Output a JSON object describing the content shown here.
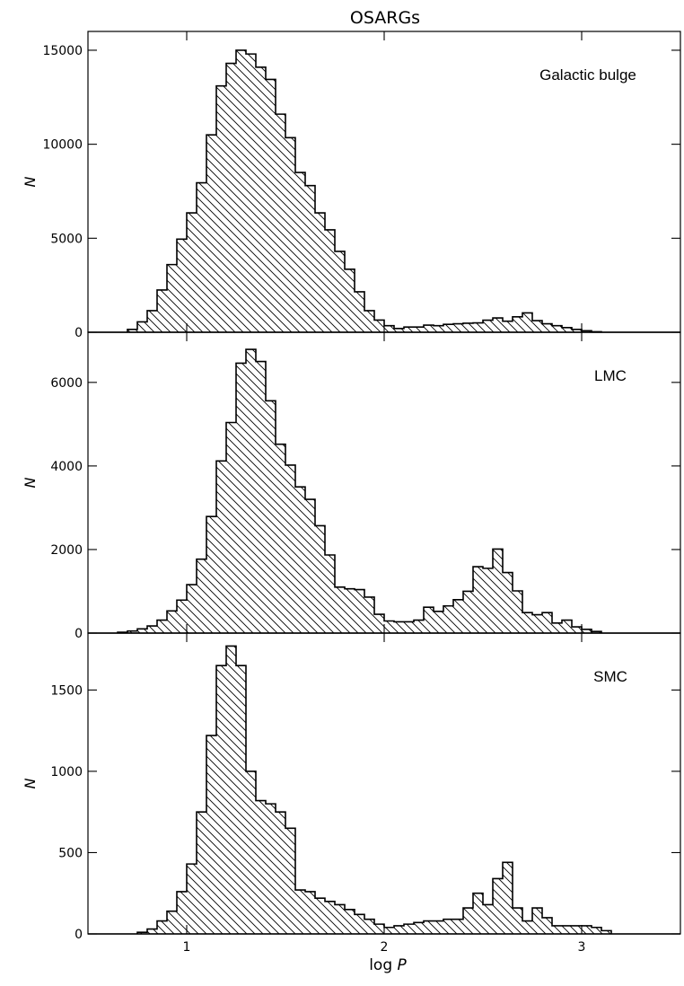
{
  "title": "OSARGs",
  "xlabel": {
    "prefix": "log",
    "var": "P"
  },
  "ylabel": "N",
  "colors": {
    "stroke": "#000000",
    "hatch": "#000000",
    "background": "#ffffff"
  },
  "chart_data": [
    {
      "type": "bar",
      "style": "step histogram with diagonal hatching",
      "panel_label": "Galactic bulge",
      "xlabel": "",
      "ylabel": "N",
      "xlim": [
        0.5,
        3.5
      ],
      "ylim": [
        0,
        16000
      ],
      "bin_width": 0.05,
      "x_ticks": [
        1,
        2,
        3
      ],
      "y_ticks": [
        0,
        5000,
        10000,
        15000
      ],
      "bin_start": [
        0.7,
        0.75,
        0.8,
        0.85,
        0.9,
        0.95,
        1.0,
        1.05,
        1.1,
        1.15,
        1.2,
        1.25,
        1.3,
        1.35,
        1.4,
        1.45,
        1.5,
        1.55,
        1.6,
        1.65,
        1.7,
        1.75,
        1.8,
        1.85,
        1.9,
        1.95,
        2.0,
        2.05,
        2.1,
        2.15,
        2.2,
        2.25,
        2.3,
        2.35,
        2.4,
        2.45,
        2.5,
        2.55,
        2.6,
        2.65,
        2.7,
        2.75,
        2.8,
        2.85,
        2.9,
        2.95,
        3.0,
        3.05
      ],
      "values": [
        150,
        550,
        1150,
        2250,
        3600,
        4950,
        6350,
        7950,
        10500,
        13100,
        14300,
        15000,
        14800,
        14100,
        13450,
        11600,
        10350,
        8500,
        7800,
        6350,
        5450,
        4300,
        3350,
        2150,
        1150,
        650,
        350,
        200,
        280,
        280,
        380,
        350,
        420,
        450,
        480,
        500,
        640,
        760,
        590,
        820,
        1030,
        620,
        450,
        350,
        250,
        150,
        80,
        30
      ]
    },
    {
      "type": "bar",
      "style": "step histogram with diagonal hatching",
      "panel_label": "LMC",
      "xlabel": "",
      "ylabel": "N",
      "xlim": [
        0.5,
        3.5
      ],
      "ylim": [
        0,
        7200
      ],
      "bin_width": 0.05,
      "x_ticks": [
        1,
        2,
        3
      ],
      "y_ticks": [
        0,
        2000,
        4000,
        6000
      ],
      "bin_start": [
        0.65,
        0.7,
        0.75,
        0.8,
        0.85,
        0.9,
        0.95,
        1.0,
        1.05,
        1.1,
        1.15,
        1.2,
        1.25,
        1.3,
        1.35,
        1.4,
        1.45,
        1.5,
        1.55,
        1.6,
        1.65,
        1.7,
        1.75,
        1.8,
        1.85,
        1.9,
        1.95,
        2.0,
        2.05,
        2.1,
        2.15,
        2.2,
        2.25,
        2.3,
        2.35,
        2.4,
        2.45,
        2.5,
        2.55,
        2.6,
        2.65,
        2.7,
        2.75,
        2.8,
        2.85,
        2.9,
        2.95,
        3.0,
        3.05
      ],
      "values": [
        20,
        50,
        100,
        170,
        310,
        530,
        790,
        1160,
        1770,
        2790,
        4120,
        5040,
        6460,
        6790,
        6500,
        5560,
        4520,
        4020,
        3500,
        3200,
        2570,
        1870,
        1100,
        1060,
        1040,
        860,
        450,
        290,
        270,
        270,
        310,
        620,
        520,
        650,
        800,
        1000,
        1590,
        1550,
        2010,
        1450,
        1010,
        490,
        440,
        490,
        240,
        310,
        150,
        90,
        40
      ]
    },
    {
      "type": "bar",
      "style": "step histogram with diagonal hatching",
      "panel_label": "SMC",
      "xlabel": "log P",
      "ylabel": "N",
      "xlim": [
        0.5,
        3.5
      ],
      "ylim": [
        0,
        1850
      ],
      "bin_width": 0.05,
      "x_ticks": [
        1,
        2,
        3
      ],
      "y_ticks": [
        0,
        500,
        1000,
        1500
      ],
      "bin_start": [
        0.75,
        0.8,
        0.85,
        0.9,
        0.95,
        1.0,
        1.05,
        1.1,
        1.15,
        1.2,
        1.25,
        1.3,
        1.35,
        1.4,
        1.45,
        1.5,
        1.55,
        1.6,
        1.65,
        1.7,
        1.75,
        1.8,
        1.85,
        1.9,
        1.95,
        2.0,
        2.05,
        2.1,
        2.15,
        2.2,
        2.25,
        2.3,
        2.35,
        2.4,
        2.45,
        2.5,
        2.55,
        2.6,
        2.65,
        2.7,
        2.75,
        2.8,
        2.85,
        2.9,
        2.95,
        3.0,
        3.05,
        3.1
      ],
      "values": [
        10,
        30,
        80,
        140,
        260,
        430,
        750,
        1220,
        1650,
        1770,
        1650,
        1000,
        820,
        800,
        750,
        650,
        270,
        260,
        220,
        200,
        180,
        150,
        120,
        90,
        60,
        40,
        50,
        60,
        70,
        80,
        80,
        90,
        90,
        160,
        250,
        180,
        340,
        440,
        160,
        80,
        160,
        100,
        50,
        50,
        50,
        50,
        40,
        20
      ]
    }
  ]
}
